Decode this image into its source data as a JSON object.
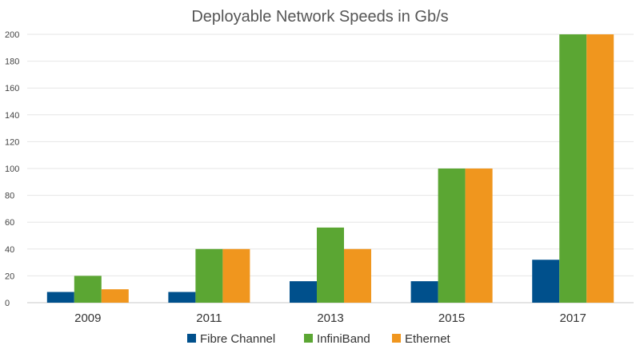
{
  "chart_data": {
    "type": "bar",
    "title": "Deployable Network Speeds in Gb/s",
    "xlabel": "",
    "ylabel": "",
    "categories": [
      "2009",
      "2011",
      "2013",
      "2015",
      "2017"
    ],
    "ylim": [
      0,
      200
    ],
    "yticks": [
      0,
      20,
      40,
      60,
      80,
      100,
      120,
      140,
      160,
      180,
      200
    ],
    "grid": true,
    "legend_position": "bottom",
    "series": [
      {
        "name": "Fibre Channel",
        "color": "#00508C",
        "values": [
          8,
          8,
          16,
          16,
          32
        ]
      },
      {
        "name": "InfiniBand",
        "color": "#5BA633",
        "values": [
          20,
          40,
          56,
          100,
          200
        ]
      },
      {
        "name": "Ethernet",
        "color": "#F0961E",
        "values": [
          10,
          40,
          40,
          100,
          200
        ]
      }
    ]
  }
}
